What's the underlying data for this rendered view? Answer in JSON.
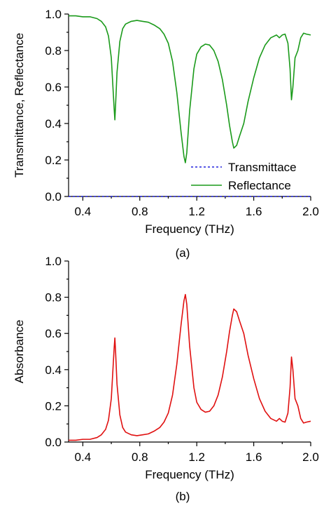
{
  "chart_data": [
    {
      "type": "line",
      "panel_label": "(a)",
      "xlabel": "Frequency (THz)",
      "ylabel": "Transmittance, Reflectance",
      "xlim": [
        0.3,
        2.0
      ],
      "ylim": [
        0.0,
        1.0
      ],
      "x_ticks": [
        "0.4",
        "0.8",
        "1.2",
        "1.6",
        "2.0"
      ],
      "y_ticks": [
        "0.0",
        "0.2",
        "0.4",
        "0.6",
        "0.8",
        "1.0"
      ],
      "grid": false,
      "legend_position": "bottom-right",
      "series": [
        {
          "name": "Transmittace",
          "color": "#2222dd",
          "style": "dotted",
          "points": [
            [
              0.3,
              0.0
            ],
            [
              2.0,
              0.0
            ]
          ]
        },
        {
          "name": "Reflectance",
          "color": "#1a9a1a",
          "style": "solid",
          "points": [
            [
              0.3,
              0.99
            ],
            [
              0.35,
              0.99
            ],
            [
              0.4,
              0.985
            ],
            [
              0.45,
              0.985
            ],
            [
              0.5,
              0.975
            ],
            [
              0.53,
              0.96
            ],
            [
              0.56,
              0.93
            ],
            [
              0.58,
              0.88
            ],
            [
              0.6,
              0.76
            ],
            [
              0.61,
              0.62
            ],
            [
              0.62,
              0.48
            ],
            [
              0.625,
              0.42
            ],
            [
              0.63,
              0.5
            ],
            [
              0.64,
              0.68
            ],
            [
              0.66,
              0.85
            ],
            [
              0.68,
              0.92
            ],
            [
              0.7,
              0.945
            ],
            [
              0.74,
              0.96
            ],
            [
              0.78,
              0.965
            ],
            [
              0.82,
              0.96
            ],
            [
              0.86,
              0.955
            ],
            [
              0.9,
              0.94
            ],
            [
              0.94,
              0.92
            ],
            [
              0.97,
              0.89
            ],
            [
              1.0,
              0.84
            ],
            [
              1.03,
              0.74
            ],
            [
              1.06,
              0.57
            ],
            [
              1.09,
              0.35
            ],
            [
              1.11,
              0.22
            ],
            [
              1.12,
              0.185
            ],
            [
              1.13,
              0.24
            ],
            [
              1.15,
              0.47
            ],
            [
              1.18,
              0.7
            ],
            [
              1.2,
              0.78
            ],
            [
              1.23,
              0.82
            ],
            [
              1.26,
              0.835
            ],
            [
              1.29,
              0.83
            ],
            [
              1.32,
              0.8
            ],
            [
              1.35,
              0.74
            ],
            [
              1.38,
              0.64
            ],
            [
              1.41,
              0.5
            ],
            [
              1.43,
              0.39
            ],
            [
              1.45,
              0.3
            ],
            [
              1.46,
              0.265
            ],
            [
              1.48,
              0.28
            ],
            [
              1.5,
              0.33
            ],
            [
              1.53,
              0.4
            ],
            [
              1.56,
              0.52
            ],
            [
              1.6,
              0.65
            ],
            [
              1.64,
              0.76
            ],
            [
              1.68,
              0.83
            ],
            [
              1.72,
              0.87
            ],
            [
              1.76,
              0.885
            ],
            [
              1.78,
              0.87
            ],
            [
              1.8,
              0.885
            ],
            [
              1.82,
              0.89
            ],
            [
              1.84,
              0.84
            ],
            [
              1.855,
              0.7
            ],
            [
              1.865,
              0.53
            ],
            [
              1.875,
              0.6
            ],
            [
              1.89,
              0.76
            ],
            [
              1.91,
              0.8
            ],
            [
              1.93,
              0.87
            ],
            [
              1.95,
              0.895
            ],
            [
              1.97,
              0.89
            ],
            [
              2.0,
              0.885
            ]
          ]
        }
      ]
    },
    {
      "type": "line",
      "panel_label": "(b)",
      "xlabel": "Frequency (THz)",
      "ylabel": "Absorbance",
      "xlim": [
        0.3,
        2.0
      ],
      "ylim": [
        0.0,
        1.0
      ],
      "x_ticks": [
        "0.4",
        "0.8",
        "1.2",
        "1.6",
        "2.0"
      ],
      "y_ticks": [
        "0.0",
        "0.2",
        "0.4",
        "0.6",
        "0.8",
        "1.0"
      ],
      "grid": false,
      "series": [
        {
          "color": "#e01010",
          "style": "solid",
          "points": [
            [
              0.3,
              0.01
            ],
            [
              0.35,
              0.01
            ],
            [
              0.4,
              0.015
            ],
            [
              0.45,
              0.015
            ],
            [
              0.5,
              0.025
            ],
            [
              0.53,
              0.04
            ],
            [
              0.56,
              0.07
            ],
            [
              0.58,
              0.12
            ],
            [
              0.6,
              0.24
            ],
            [
              0.61,
              0.38
            ],
            [
              0.62,
              0.52
            ],
            [
              0.625,
              0.575
            ],
            [
              0.63,
              0.5
            ],
            [
              0.64,
              0.32
            ],
            [
              0.66,
              0.15
            ],
            [
              0.68,
              0.08
            ],
            [
              0.7,
              0.055
            ],
            [
              0.74,
              0.04
            ],
            [
              0.78,
              0.035
            ],
            [
              0.82,
              0.04
            ],
            [
              0.86,
              0.045
            ],
            [
              0.9,
              0.06
            ],
            [
              0.94,
              0.08
            ],
            [
              0.97,
              0.11
            ],
            [
              1.0,
              0.16
            ],
            [
              1.03,
              0.26
            ],
            [
              1.06,
              0.43
            ],
            [
              1.09,
              0.65
            ],
            [
              1.11,
              0.78
            ],
            [
              1.12,
              0.815
            ],
            [
              1.13,
              0.76
            ],
            [
              1.15,
              0.53
            ],
            [
              1.18,
              0.3
            ],
            [
              1.2,
              0.22
            ],
            [
              1.23,
              0.18
            ],
            [
              1.26,
              0.165
            ],
            [
              1.29,
              0.17
            ],
            [
              1.32,
              0.2
            ],
            [
              1.35,
              0.26
            ],
            [
              1.38,
              0.36
            ],
            [
              1.41,
              0.5
            ],
            [
              1.43,
              0.61
            ],
            [
              1.45,
              0.7
            ],
            [
              1.46,
              0.735
            ],
            [
              1.48,
              0.72
            ],
            [
              1.5,
              0.67
            ],
            [
              1.53,
              0.6
            ],
            [
              1.56,
              0.48
            ],
            [
              1.6,
              0.35
            ],
            [
              1.64,
              0.24
            ],
            [
              1.68,
              0.17
            ],
            [
              1.72,
              0.13
            ],
            [
              1.76,
              0.115
            ],
            [
              1.78,
              0.13
            ],
            [
              1.8,
              0.115
            ],
            [
              1.82,
              0.11
            ],
            [
              1.84,
              0.16
            ],
            [
              1.855,
              0.3
            ],
            [
              1.865,
              0.47
            ],
            [
              1.875,
              0.4
            ],
            [
              1.89,
              0.24
            ],
            [
              1.91,
              0.2
            ],
            [
              1.93,
              0.13
            ],
            [
              1.95,
              0.105
            ],
            [
              1.97,
              0.11
            ],
            [
              2.0,
              0.115
            ]
          ]
        }
      ]
    }
  ]
}
